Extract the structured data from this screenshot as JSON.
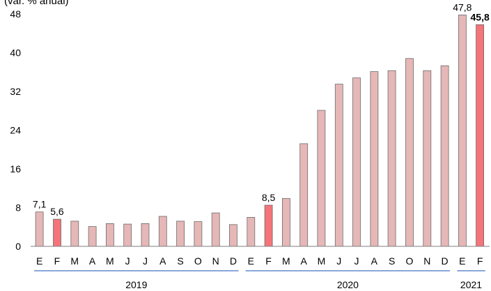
{
  "chart_data": {
    "type": "bar",
    "ylabel": "(var. % anual)",
    "ylim": [
      0,
      48
    ],
    "yticks": [
      "0",
      "8",
      "16",
      "24",
      "32",
      "40",
      "48"
    ],
    "grid": false,
    "categories": [
      "E",
      "F",
      "M",
      "A",
      "M",
      "J",
      "J",
      "A",
      "S",
      "O",
      "N",
      "D",
      "E",
      "F",
      "M",
      "A",
      "M",
      "J",
      "J",
      "A",
      "S",
      "O",
      "N",
      "D",
      "E",
      "F"
    ],
    "values": [
      7.1,
      5.6,
      5.2,
      4.1,
      4.7,
      4.6,
      4.7,
      6.2,
      5.2,
      5.1,
      6.9,
      4.5,
      6.0,
      8.5,
      9.9,
      21.2,
      28.1,
      33.5,
      34.8,
      36.1,
      36.3,
      38.8,
      36.3,
      37.3,
      47.8,
      45.8
    ],
    "highlight_indices": [
      1,
      13,
      25
    ],
    "data_labels": [
      {
        "index": 0,
        "text": "7,1",
        "bold": false
      },
      {
        "index": 1,
        "text": "5,6",
        "bold": false
      },
      {
        "index": 13,
        "text": "8,5",
        "bold": false
      },
      {
        "index": 24,
        "text": "47,8",
        "bold": false
      },
      {
        "index": 25,
        "text": "45,8",
        "bold": true
      }
    ],
    "year_groups": [
      {
        "label": "2019",
        "start": 0,
        "end": 11
      },
      {
        "label": "2020",
        "start": 12,
        "end": 23
      },
      {
        "label": "2021",
        "start": 24,
        "end": 25
      }
    ],
    "colors": {
      "bar": "#e6b7b7",
      "bar_highlight": "#f4747a",
      "bar_stroke": "#6b6b6b",
      "axis": "#7f7f7f",
      "year_line": "#4472c4",
      "text": "#000000"
    }
  }
}
